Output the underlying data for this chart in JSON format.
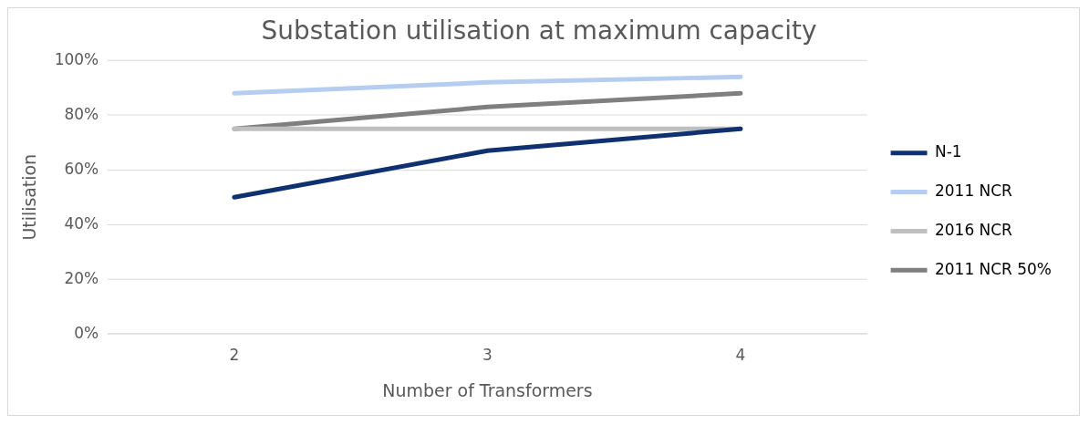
{
  "chart_data": {
    "type": "line",
    "title": "Substation utilisation at maximum capacity",
    "xlabel": "Number of Transformers",
    "ylabel": "Utilisation",
    "categories": [
      "2",
      "3",
      "4"
    ],
    "series": [
      {
        "name": "N-1",
        "color": "#0f3170",
        "values": [
          50,
          67,
          75
        ]
      },
      {
        "name": "2011 NCR",
        "color": "#b4cdf0",
        "values": [
          88,
          92,
          94
        ]
      },
      {
        "name": "2016 NCR",
        "color": "#bfbfbf",
        "values": [
          75,
          75,
          75
        ]
      },
      {
        "name": "2011 NCR 50%",
        "color": "#7f7f7f",
        "values": [
          75,
          83,
          88
        ]
      }
    ],
    "ylim": [
      0,
      100
    ],
    "yticks": [
      {
        "value": 0,
        "label": "0%"
      },
      {
        "value": 20,
        "label": "20%"
      },
      {
        "value": 40,
        "label": "40%"
      },
      {
        "value": 60,
        "label": "60%"
      },
      {
        "value": 80,
        "label": "80%"
      },
      {
        "value": 100,
        "label": "100%"
      }
    ],
    "grid": "y",
    "legend": "right",
    "marker": "none",
    "line_style": "solid"
  }
}
